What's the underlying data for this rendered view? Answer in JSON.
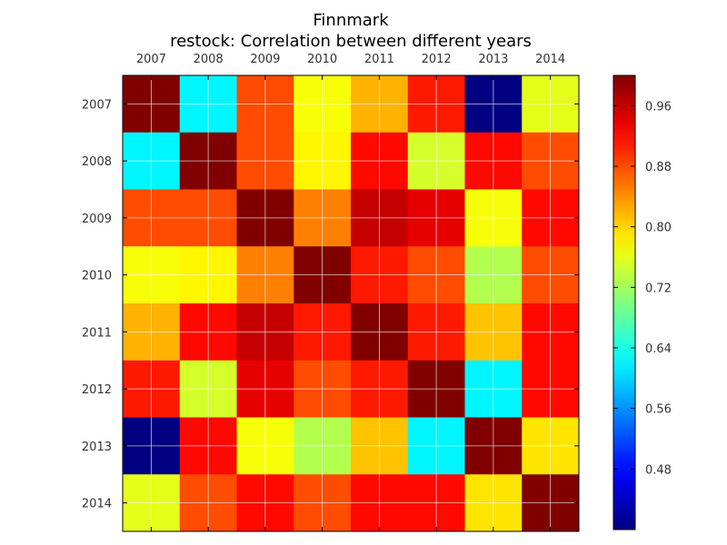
{
  "chart_data": {
    "type": "heatmap",
    "title": "Finnmark",
    "subtitle": "restock: Correlation between different years",
    "x_categories": [
      "2007",
      "2008",
      "2009",
      "2010",
      "2011",
      "2012",
      "2013",
      "2014"
    ],
    "y_categories": [
      "2007",
      "2008",
      "2009",
      "2010",
      "2011",
      "2012",
      "2013",
      "2014"
    ],
    "values": [
      [
        1.0,
        0.62,
        0.88,
        0.77,
        0.82,
        0.91,
        0.4,
        0.76
      ],
      [
        0.62,
        1.0,
        0.88,
        0.78,
        0.92,
        0.75,
        0.92,
        0.88
      ],
      [
        0.88,
        0.88,
        1.0,
        0.85,
        0.96,
        0.94,
        0.77,
        0.92
      ],
      [
        0.77,
        0.78,
        0.85,
        1.0,
        0.91,
        0.88,
        0.73,
        0.88
      ],
      [
        0.82,
        0.92,
        0.96,
        0.91,
        1.0,
        0.91,
        0.81,
        0.92
      ],
      [
        0.91,
        0.75,
        0.94,
        0.88,
        0.91,
        1.0,
        0.62,
        0.92
      ],
      [
        0.4,
        0.92,
        0.77,
        0.73,
        0.81,
        0.62,
        1.0,
        0.79
      ],
      [
        0.76,
        0.88,
        0.92,
        0.88,
        0.92,
        0.92,
        0.79,
        1.0
      ]
    ],
    "colormap": "jet",
    "vmin": 0.4,
    "vmax": 1.0,
    "colorbar_ticks": [
      "0.48",
      "0.56",
      "0.64",
      "0.72",
      "0.80",
      "0.88",
      "0.96"
    ],
    "grid": true
  }
}
